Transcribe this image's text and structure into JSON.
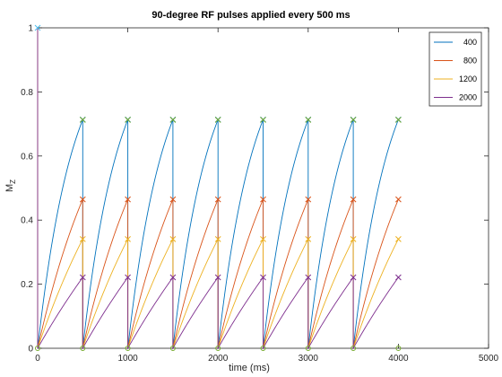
{
  "chart_data": {
    "type": "line",
    "title": "90-degree RF pulses applied every 500 ms",
    "xlabel": "time (ms)",
    "ylabel": "M",
    "ylabel_sub": "Z",
    "xlim": [
      0,
      5000
    ],
    "ylim": [
      0,
      1
    ],
    "xticks": [
      0,
      1000,
      2000,
      3000,
      4000,
      5000
    ],
    "yticks": [
      0,
      0.2,
      0.4,
      0.6,
      0.8,
      1
    ],
    "xtick_labels": [
      "0",
      "1000",
      "2000",
      "3000",
      "4000",
      "5000"
    ],
    "ytick_labels": [
      "0",
      "0.2",
      "0.4",
      "0.6",
      "0.8",
      "1"
    ],
    "grid": false,
    "legend_position": "top-right",
    "pulse_interval": 500,
    "pulse_count": 8,
    "initial_value": 1,
    "series": [
      {
        "name": "400",
        "t1": 400,
        "color": "#0072BD",
        "pre_pulse_value": 0.713
      },
      {
        "name": "800",
        "t1": 800,
        "color": "#D95319",
        "pre_pulse_value": 0.465
      },
      {
        "name": "1200",
        "t1": 1200,
        "color": "#EDB120",
        "pre_pulse_value": 0.341
      },
      {
        "name": "2000",
        "t1": 2000,
        "color": "#7E2F8E",
        "pre_pulse_value": 0.221
      }
    ],
    "circle_color": "#77AC30",
    "cross_color_initial": "#4DBEEE"
  }
}
